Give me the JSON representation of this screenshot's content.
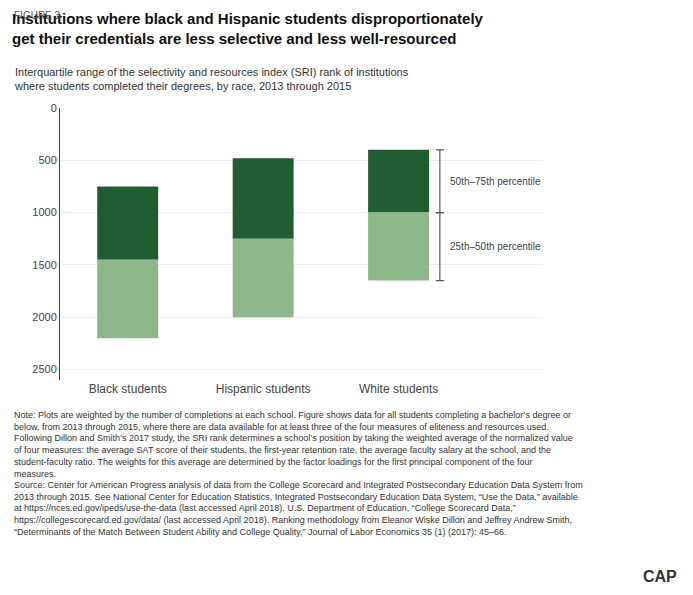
{
  "chart_data": {
    "type": "bar",
    "figure_label": "FIGURE 3",
    "title": "Institutions where black and Hispanic students disproportionately\nget their credentials are less selective and less well-resourced",
    "subtitle": "Interquartile range of the selectivity and resources index (SRI) rank of institutions\nwhere students completed their degrees, by race, 2013 through 2015",
    "categories": [
      "Black students",
      "Hispanic students",
      "White students"
    ],
    "series": [
      {
        "color": "#1e5e30",
        "from": [
          750,
          480,
          400
        ],
        "to": [
          1450,
          1250,
          1000
        ]
      },
      {
        "color": "#8cb88c",
        "from": [
          1450,
          1250,
          1000
        ],
        "to": [
          2200,
          2000,
          1650
        ]
      }
    ],
    "ylim": [
      2600,
      0
    ],
    "yticks": [
      0,
      500,
      1000,
      1500,
      2000,
      2500
    ],
    "grid": true,
    "annotations": [
      {
        "text": "50th–75th percentile",
        "category": "White students",
        "series": 0
      },
      {
        "text": "25th–50th percentile",
        "category": "White students",
        "series": 1
      }
    ],
    "note": "Note: Plots are weighted by the number of completions at each school. Figure shows data for all students completing a bachelor’s degree or below, from 2013 through 2015, where there are data available for at least three of the four measures of eliteness and resources used. Following Dillon and Smith’s 2017 study, the SRI rank determines a school’s position by taking the weighted average of the normalized value of four measures: the average SAT score of their students, the first-year retention rate, the average faculty salary at the school, and the student-faculty ratio. The weights for this average are determined by the factor loadings for the first principal component of the four measures.",
    "source": "Source: Center for American Progress analysis of data from the College Scorecard and Integrated Postsecondary Education Data System from 2013 through 2015. See National Center for Education Statistics, Integrated Postsecondary Education Data System, “Use the Data,” available at https://nces.ed.gov/ipeds/use-the-data (last accessed April 2018). U.S. Department of Education, “College Scorecard Data,” https://collegescorecard.ed.gov/data/ (last accessed April 2018). Ranking methodology from Eleanor Wiske Dillon and Jeffrey Andrew Smith, “Determinants of the Match Between Student Ability and College Quality,” Journal of Labor Economics 35 (1) (2017): 45–66.",
    "logo": "CAP"
  }
}
